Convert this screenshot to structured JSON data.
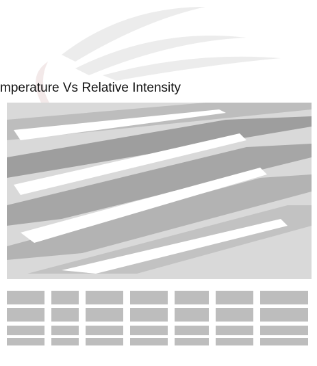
{
  "header": {
    "title": "mperature Vs Relative Intensity"
  }
}
